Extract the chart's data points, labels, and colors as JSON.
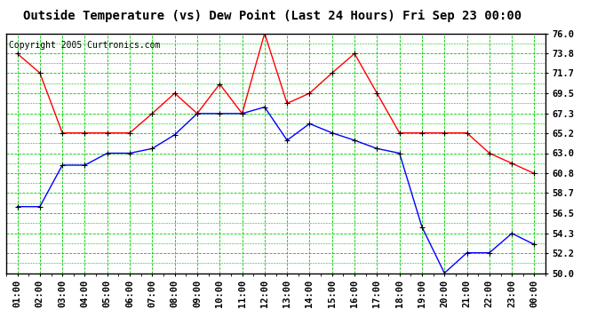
{
  "title": "Outside Temperature (vs) Dew Point (Last 24 Hours) Fri Sep 23 00:00",
  "copyright": "Copyright 2005 Curtronics.com",
  "x_labels": [
    "01:00",
    "02:00",
    "03:00",
    "04:00",
    "05:00",
    "06:00",
    "07:00",
    "08:00",
    "09:00",
    "10:00",
    "11:00",
    "12:00",
    "13:00",
    "14:00",
    "15:00",
    "16:00",
    "17:00",
    "18:00",
    "19:00",
    "20:00",
    "21:00",
    "22:00",
    "23:00",
    "00:00"
  ],
  "red_temp": [
    73.8,
    71.7,
    65.2,
    65.2,
    65.2,
    65.2,
    67.3,
    69.5,
    67.3,
    70.5,
    67.3,
    76.0,
    68.4,
    69.5,
    71.7,
    73.8,
    69.5,
    65.2,
    65.2,
    65.2,
    65.2,
    63.0,
    61.9,
    60.8
  ],
  "blue_dew": [
    57.2,
    57.2,
    61.7,
    61.7,
    63.0,
    63.0,
    63.5,
    65.0,
    67.3,
    67.3,
    67.3,
    68.0,
    64.4,
    66.2,
    65.2,
    64.4,
    63.5,
    63.0,
    55.0,
    50.0,
    52.2,
    52.2,
    54.3,
    53.1
  ],
  "red_color": "#ff0000",
  "blue_color": "#0000ff",
  "bg_color": "#ffffff",
  "plot_bg": "#ffffff",
  "grid_color_h": "#00cc00",
  "grid_color_v": "#00cc00",
  "minor_grid_color": "#00cc00",
  "title_fontsize": 10,
  "copyright_fontsize": 7,
  "tick_fontsize": 7.5,
  "yticks": [
    50.0,
    52.2,
    54.3,
    56.5,
    58.7,
    60.8,
    63.0,
    65.2,
    67.3,
    69.5,
    71.7,
    73.8,
    76.0
  ],
  "ymin": 50.0,
  "ymax": 76.0
}
